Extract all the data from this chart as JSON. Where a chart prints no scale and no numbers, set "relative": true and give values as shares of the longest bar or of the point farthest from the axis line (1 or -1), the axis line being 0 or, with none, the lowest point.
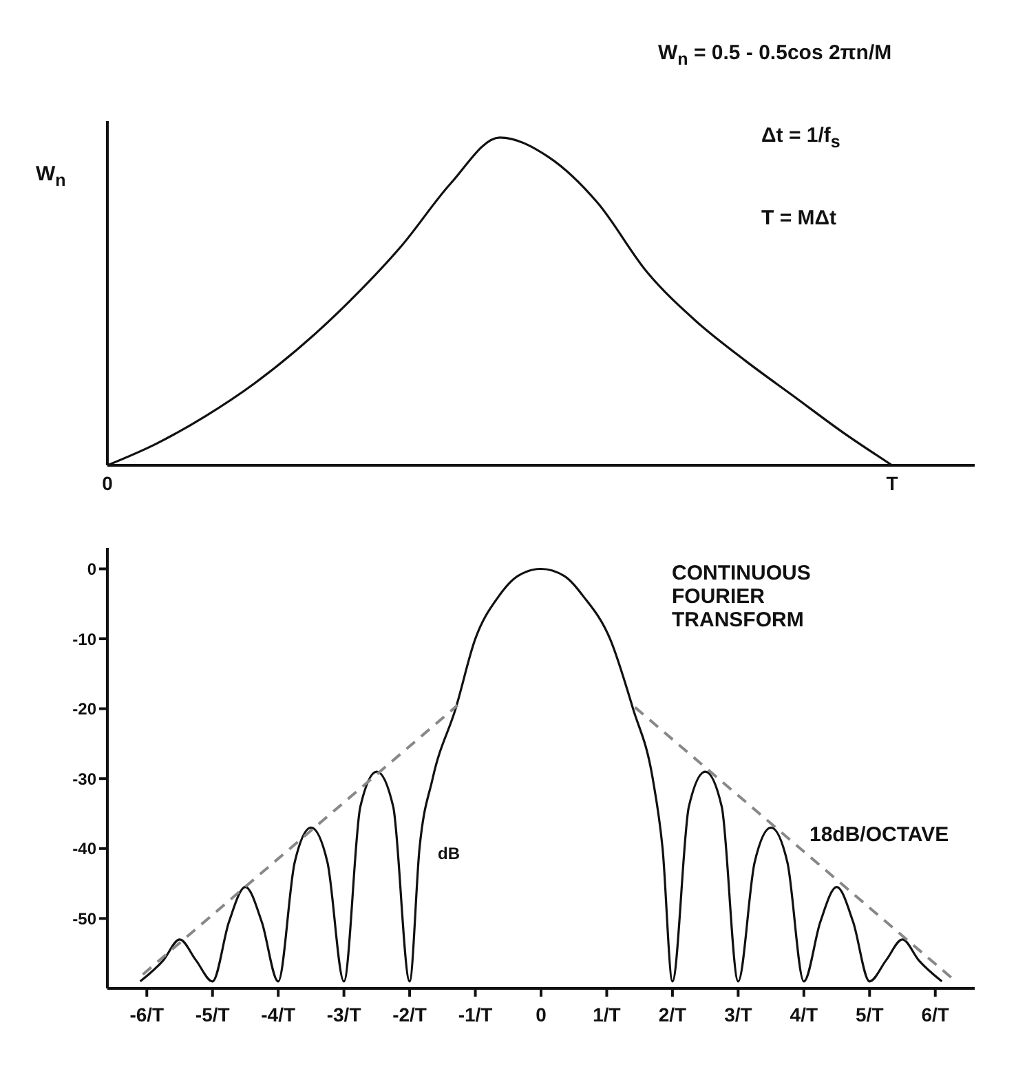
{
  "chart_data": [
    {
      "type": "line",
      "relative": true,
      "ylabel": "W$_{n}$",
      "tick_labels": "x",
      "annotations": [
        "W$_{n}$ = 0.5 - 0.5cos 2πn/M",
        "Δt = 1/f$_{s}$",
        "T = MΔt"
      ],
      "categories": [
        "0",
        null,
        null,
        null,
        null,
        null,
        null,
        null,
        null,
        null,
        null,
        null,
        null,
        null,
        null,
        null,
        "T"
      ],
      "series": [
        {
          "color": "#111111",
          "values": [
            0,
            0.066,
            0.15,
            0.25,
            0.37,
            0.51,
            0.67,
            0.86,
            1,
            0.94,
            0.8,
            0.59,
            0.44,
            0.32,
            0.21,
            0.1,
            0
          ]
        }
      ]
    },
    {
      "type": "line",
      "ylabel": "dB",
      "annotations": [
        "CONTINUOUS FOURIER TRANSFORM",
        "18dB/OCTAVE"
      ],
      "xlim": [
        -6.6,
        6.6
      ],
      "ylim": [
        -60,
        3
      ],
      "yticks": [
        -50,
        -40,
        -30,
        -20,
        -10,
        0
      ],
      "xticks": [
        {
          "value": -6,
          "label": "-6/T"
        },
        {
          "value": -5,
          "label": "-5/T"
        },
        {
          "value": -4,
          "label": "-4/T"
        },
        {
          "value": -3,
          "label": "-3/T"
        },
        {
          "value": -2,
          "label": "-2/T"
        },
        {
          "value": -1,
          "label": "-1/T"
        },
        0,
        {
          "value": 1,
          "label": "1/T"
        },
        {
          "value": 2,
          "label": "2/T"
        },
        {
          "value": 3,
          "label": "3/T"
        },
        {
          "value": 4,
          "label": "4/T"
        },
        {
          "value": 5,
          "label": "5/T"
        },
        {
          "value": 6,
          "label": "6/T"
        }
      ],
      "series": [
        {
          "color": "#111111",
          "x": [
            -6.1,
            -5.75,
            -5.5,
            -5.25,
            -5,
            -4.75,
            -4.5,
            -4.25,
            -4,
            -3.75,
            -3.5,
            -3.25,
            -3,
            -2.75,
            -2.5,
            -2.25,
            -2,
            -1.85,
            -1.65,
            -1.3,
            -1.0,
            -0.65,
            -0.35,
            0,
            0.35,
            0.65,
            1.05,
            1.4,
            1.7,
            1.85,
            2,
            2.25,
            2.5,
            2.75,
            3,
            3.25,
            3.5,
            3.75,
            4,
            4.25,
            4.5,
            4.75,
            5,
            5.25,
            5.5,
            5.75,
            6.1
          ],
          "values": [
            -59,
            -56,
            -53,
            -56,
            -59,
            -50.5,
            -45.5,
            -50.5,
            -59,
            -42,
            -37,
            -42,
            -59,
            -34,
            -29,
            -34,
            -59,
            -40,
            -30,
            -20,
            -10,
            -4,
            -1,
            0,
            -1,
            -4,
            -10,
            -20,
            -30,
            -40,
            -59,
            -34,
            -29,
            -34,
            -59,
            -42,
            -37,
            -42,
            -59,
            -50.5,
            -45.5,
            -50.5,
            -59,
            -56,
            -53,
            -56,
            -59
          ]
        },
        {
          "color": "#888888",
          "line_style": "dashed",
          "x": [
            -6.06,
            -1.27
          ],
          "values": [
            -58,
            -19.5
          ]
        },
        {
          "color": "#888888",
          "line_style": "dashed",
          "x": [
            1.43,
            6.25
          ],
          "values": [
            -19.8,
            -58.5
          ]
        }
      ]
    }
  ]
}
